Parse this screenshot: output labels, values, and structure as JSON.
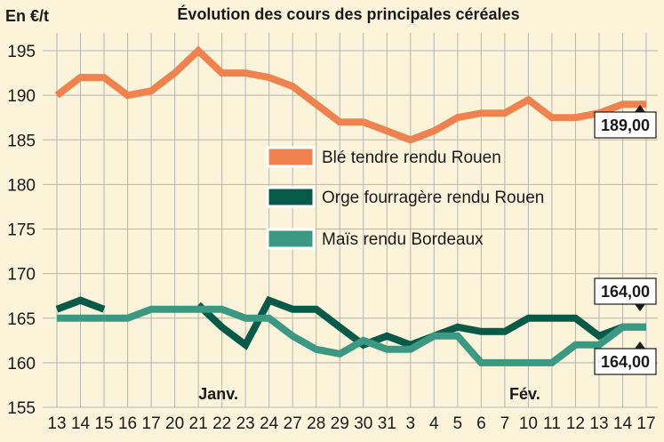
{
  "chart_data": {
    "type": "line",
    "title": "Évolution des cours des principales céréales",
    "ylabel": "En €/t",
    "ylim": [
      155,
      197
    ],
    "yticks": [
      155,
      160,
      165,
      170,
      175,
      180,
      185,
      190,
      195
    ],
    "grid": true,
    "legend_position": "center",
    "categories": [
      "13",
      "14",
      "15",
      "16",
      "17",
      "20",
      "21",
      "22",
      "23",
      "24",
      "27",
      "28",
      "29",
      "30",
      "31",
      "3",
      "4",
      "5",
      "6",
      "7",
      "10",
      "11",
      "12",
      "13",
      "14",
      "17"
    ],
    "month_labels": [
      {
        "label": "Janv.",
        "at_index": 7
      },
      {
        "label": "Fév.",
        "at_index": 20
      }
    ],
    "series": [
      {
        "name": "Blé tendre rendu Rouen",
        "color": "#ef8350",
        "values": [
          190,
          192,
          192,
          190,
          190.5,
          192.5,
          195,
          192.5,
          192.5,
          192,
          191,
          189,
          187,
          187,
          186,
          185,
          186,
          187.5,
          188,
          188,
          189.5,
          187.5,
          187.5,
          188,
          189,
          189
        ]
      },
      {
        "name": "Orge fourragère rendu Rouen",
        "color": "#075a48",
        "values": [
          166,
          167,
          166,
          null,
          null,
          null,
          166.5,
          164,
          162,
          167,
          166,
          166,
          164,
          162,
          163,
          162,
          163,
          164,
          163.5,
          163.5,
          165,
          165,
          165,
          163,
          164,
          164
        ]
      },
      {
        "name": "Maïs rendu Bordeaux",
        "color": "#3b9883",
        "values": [
          165,
          165,
          165,
          165,
          166,
          166,
          166,
          166,
          165,
          165,
          163,
          161.5,
          161,
          162.5,
          161.5,
          161.5,
          163,
          163,
          160,
          160,
          160,
          160,
          162,
          162,
          164,
          164
        ]
      }
    ],
    "callouts": [
      {
        "text": "189,00",
        "series": 0
      },
      {
        "text": "164,00",
        "series": 1
      },
      {
        "text": "164,00",
        "series": 2
      }
    ]
  }
}
